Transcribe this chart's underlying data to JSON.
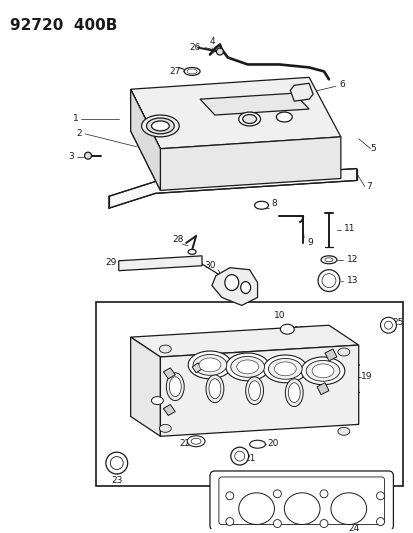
{
  "title": "92720  400B",
  "bg_color": "#ffffff",
  "text_color": "#000000",
  "fig_width": 4.14,
  "fig_height": 5.33,
  "dpi": 100,
  "lc": "#1a1a1a",
  "lw_main": 0.9,
  "lw_thin": 0.5,
  "lw_thick": 1.4
}
